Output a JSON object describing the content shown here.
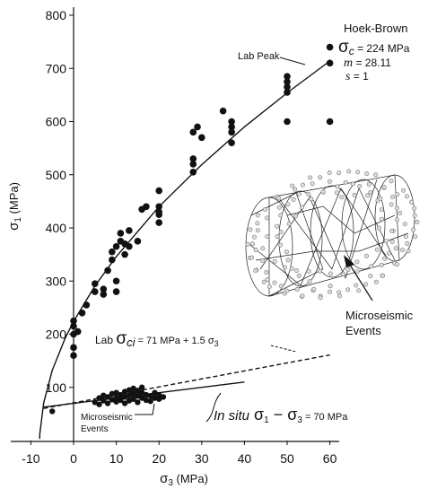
{
  "chart_data": {
    "type": "scatter",
    "xlim": [
      -14,
      61
    ],
    "ylim": [
      0,
      800
    ],
    "xticks": [
      -10,
      0,
      10,
      20,
      30,
      40,
      50,
      60
    ],
    "yticks": [
      100,
      200,
      300,
      400,
      500,
      600,
      700,
      800
    ],
    "grid": false,
    "x_label": {
      "symbol": "σ",
      "sub": "3",
      "text": " (MPa)"
    },
    "y_label": {
      "symbol": "σ",
      "sub": "1",
      "text": " (MPa)"
    },
    "series": [
      {
        "color": "#111111",
        "x": [
          0,
          0,
          0,
          0,
          0,
          1,
          2,
          3,
          5,
          5,
          7,
          7,
          8,
          9,
          9,
          10,
          10,
          10,
          11,
          11,
          12,
          12,
          13,
          13,
          15,
          16,
          17,
          20,
          20,
          20,
          20,
          20,
          28,
          28,
          28,
          28,
          29,
          30,
          35,
          37,
          37,
          37,
          37,
          50,
          50,
          50,
          50,
          50,
          60,
          60,
          60
        ],
        "values": [
          160,
          175,
          200,
          215,
          225,
          205,
          240,
          255,
          280,
          295,
          275,
          285,
          320,
          340,
          355,
          280,
          300,
          365,
          375,
          390,
          350,
          370,
          395,
          365,
          375,
          435,
          440,
          410,
          425,
          430,
          440,
          470,
          505,
          520,
          530,
          580,
          590,
          570,
          620,
          560,
          580,
          590,
          600,
          600,
          655,
          665,
          675,
          685,
          600,
          710,
          740
        ]
      },
      {
        "color": "#111111",
        "x": [
          -5,
          5,
          6,
          6,
          7,
          7,
          8,
          8,
          9,
          9,
          10,
          10,
          10,
          11,
          11,
          12,
          12,
          12,
          13,
          13,
          13,
          14,
          14,
          14,
          15,
          15,
          15,
          16,
          16,
          16,
          17,
          17,
          18,
          18,
          19,
          19,
          20,
          20,
          21
        ],
        "values": [
          55,
          72,
          68,
          80,
          75,
          85,
          70,
          82,
          77,
          88,
          73,
          80,
          90,
          76,
          86,
          70,
          82,
          92,
          75,
          85,
          95,
          78,
          88,
          98,
          72,
          84,
          94,
          80,
          90,
          100,
          76,
          86,
          74,
          84,
          80,
          90,
          78,
          86,
          82
        ]
      }
    ],
    "curves": [
      {
        "x": [
          -7.95,
          -7.9,
          -7,
          -5,
          -2,
          0,
          5,
          10,
          20,
          30,
          40,
          50,
          60
        ],
        "values": [
          3,
          13,
          71,
          132,
          192,
          224,
          291,
          346,
          440,
          519,
          590,
          654,
          714
        ],
        "dashed": false
      },
      {
        "x": [
          -7,
          60
        ],
        "values": [
          60.5,
          161
        ],
        "dashed": true
      },
      {
        "x": [
          -7,
          40
        ],
        "values": [
          63,
          110
        ],
        "dashed": false
      }
    ],
    "annotations": {
      "hoek_brown": {
        "title": "Hoek-Brown",
        "sigma_c": {
          "symbol": "σ",
          "sub": "c",
          "text": " = 224 MPa"
        },
        "m": {
          "symbol": "m",
          "text": " = 28.11"
        },
        "s": {
          "symbol": "s",
          "text": " = 1"
        }
      },
      "lab_peak": "Lab Peak",
      "events_label": [
        "Microseismic",
        "Events"
      ],
      "lab_eq": {
        "prefix": "Lab ",
        "symbol": "σ",
        "sub": "ci",
        "text": " = 71 MPa + 1.5 σ",
        "sub2": "3"
      },
      "cluster_label": [
        "Microseismic",
        "Events"
      ],
      "insitu": {
        "prefix": "In situ",
        "symbol1": " σ",
        "sub1": "1",
        "minus": " − σ",
        "sub2": "3",
        "text": " = 70 MPa"
      }
    }
  }
}
